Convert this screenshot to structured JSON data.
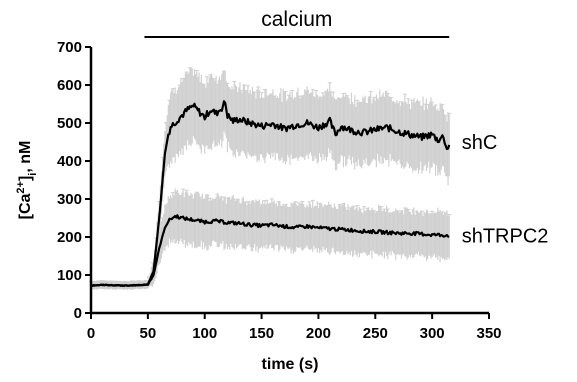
{
  "chart_data": {
    "type": "line",
    "title": "",
    "xlabel": "time (s)",
    "ylabel_parts": {
      "open": "[Ca",
      "sup": "2+",
      "close": "]",
      "sub": "i",
      "unit": ", nM"
    },
    "xlim": [
      0,
      350
    ],
    "ylim": [
      0,
      700
    ],
    "x_ticks": [
      0,
      50,
      100,
      150,
      200,
      250,
      300,
      350
    ],
    "y_ticks": [
      0,
      100,
      200,
      300,
      400,
      500,
      600,
      700
    ],
    "grid": false,
    "annotation": {
      "label": "calcium",
      "x_start": 47,
      "x_end": 315
    },
    "series": [
      {
        "name": "shC",
        "color": "#000000",
        "error_color": "#d0d0d0",
        "x": [
          0,
          10,
          20,
          30,
          40,
          50,
          55,
          60,
          65,
          68,
          70,
          75,
          80,
          85,
          90,
          95,
          100,
          105,
          110,
          115,
          118,
          120,
          125,
          130,
          140,
          150,
          160,
          170,
          180,
          190,
          200,
          210,
          215,
          220,
          230,
          240,
          250,
          260,
          270,
          280,
          290,
          300,
          305,
          310,
          313,
          315
        ],
        "y": [
          72,
          74,
          73,
          72,
          73,
          75,
          110,
          250,
          420,
          470,
          490,
          505,
          520,
          535,
          545,
          530,
          515,
          535,
          525,
          540,
          555,
          520,
          505,
          510,
          500,
          492,
          498,
          485,
          495,
          500,
          488,
          505,
          470,
          492,
          480,
          475,
          482,
          488,
          478,
          470,
          462,
          470,
          455,
          465,
          430,
          445
        ],
        "err": [
          10,
          10,
          10,
          10,
          10,
          10,
          30,
          50,
          70,
          80,
          85,
          90,
          90,
          90,
          90,
          90,
          90,
          90,
          90,
          90,
          90,
          85,
          85,
          85,
          85,
          85,
          85,
          85,
          85,
          85,
          85,
          85,
          85,
          85,
          85,
          85,
          85,
          85,
          85,
          85,
          85,
          85,
          85,
          85,
          85,
          85
        ]
      },
      {
        "name": "shTRPC2",
        "color": "#000000",
        "error_color": "#d0d0d0",
        "x": [
          0,
          10,
          20,
          30,
          40,
          50,
          55,
          60,
          65,
          68,
          70,
          75,
          80,
          90,
          100,
          110,
          120,
          130,
          140,
          150,
          160,
          170,
          180,
          190,
          200,
          210,
          220,
          230,
          240,
          250,
          260,
          270,
          280,
          290,
          300,
          310,
          315
        ],
        "y": [
          72,
          74,
          73,
          72,
          73,
          75,
          100,
          170,
          225,
          240,
          248,
          255,
          250,
          245,
          240,
          242,
          238,
          236,
          232,
          230,
          232,
          228,
          225,
          228,
          224,
          222,
          220,
          218,
          215,
          214,
          212,
          210,
          210,
          208,
          206,
          205,
          204
        ],
        "err": [
          10,
          10,
          10,
          10,
          10,
          10,
          25,
          40,
          55,
          60,
          62,
          65,
          65,
          65,
          65,
          62,
          62,
          62,
          62,
          60,
          60,
          60,
          60,
          60,
          60,
          60,
          60,
          60,
          60,
          60,
          60,
          60,
          60,
          60,
          60,
          60,
          60
        ]
      }
    ]
  }
}
